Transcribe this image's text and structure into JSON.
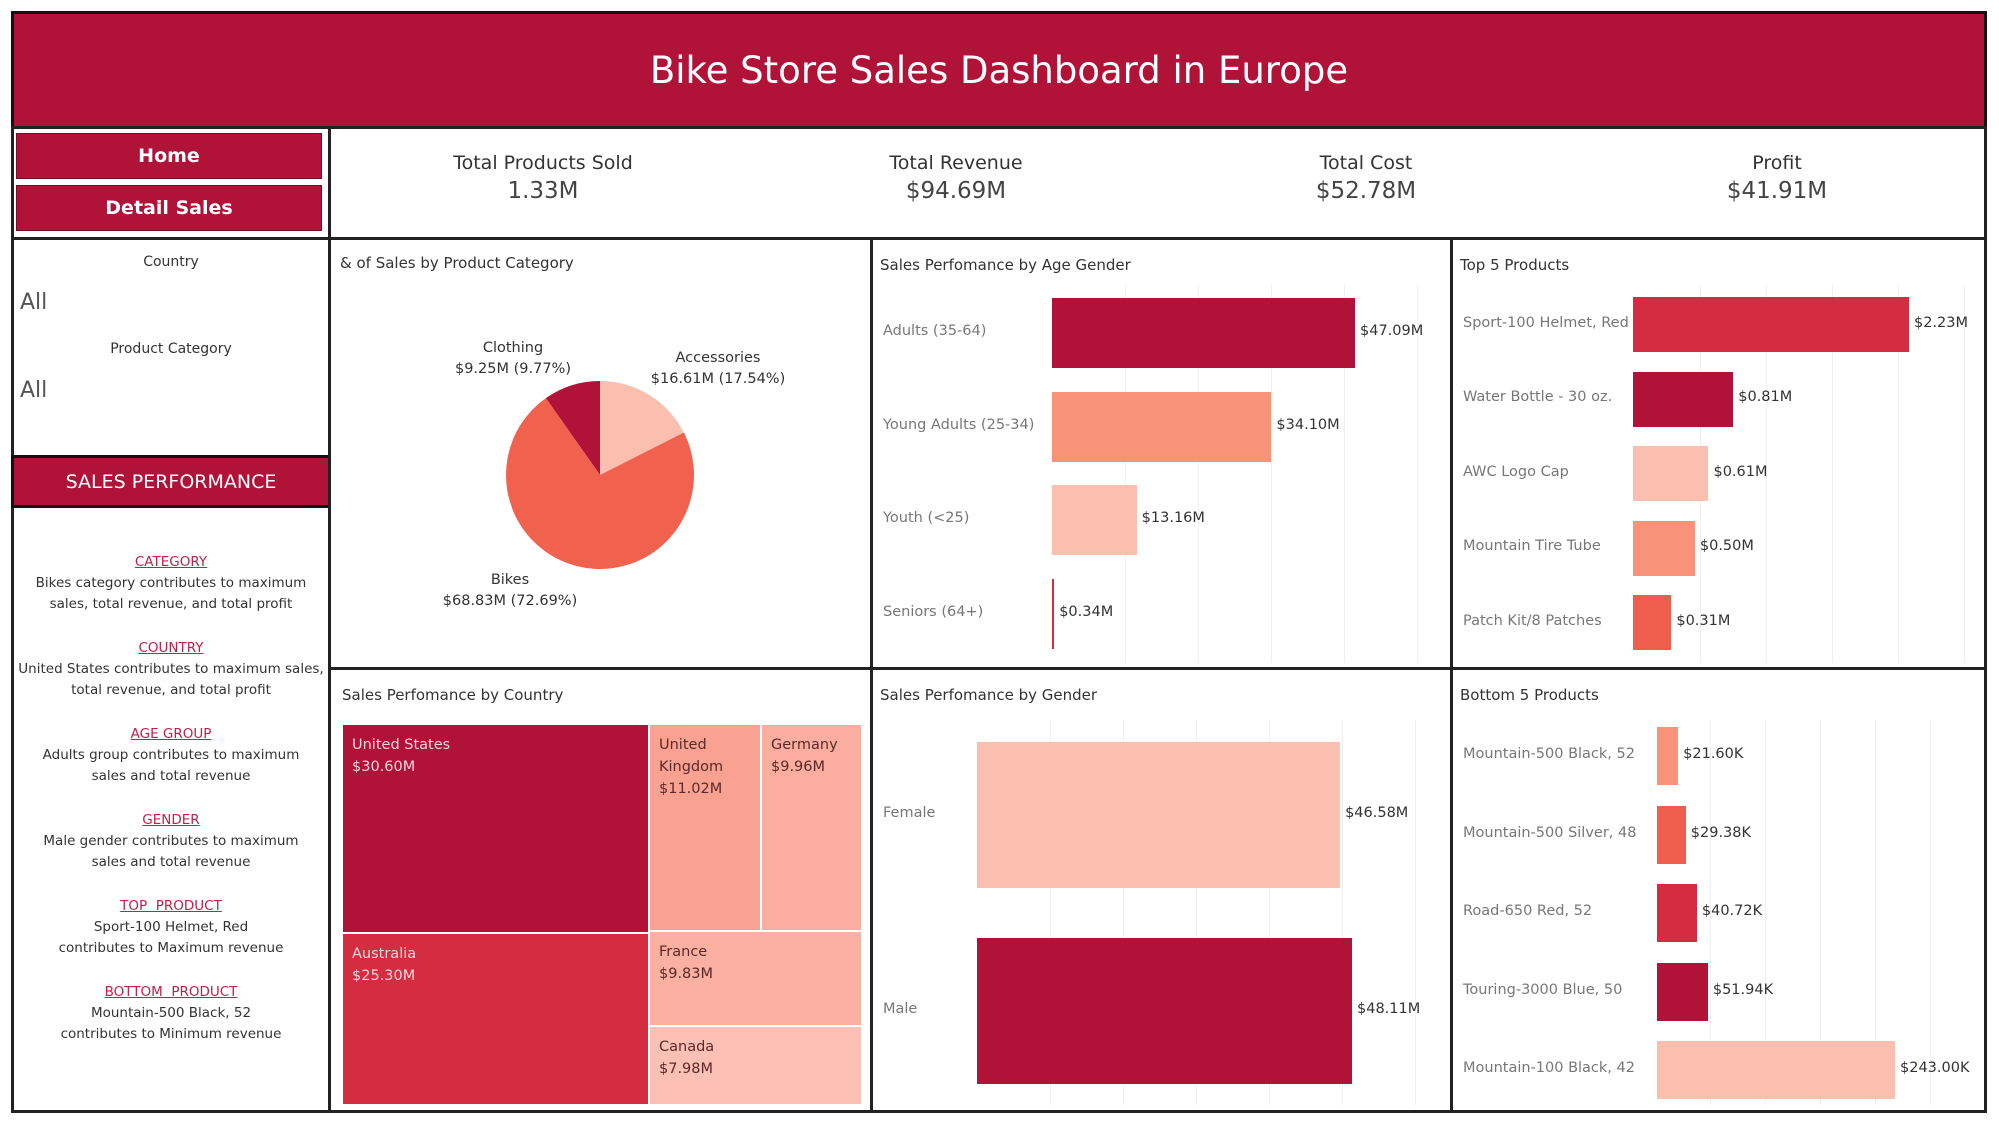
{
  "header": {
    "title": "Bike Store Sales Dashboard in Europe"
  },
  "nav": {
    "home_label": "Home",
    "detail_label": "Detail Sales"
  },
  "kpis": [
    {
      "label": "Total Products Sold",
      "value": "1.33M"
    },
    {
      "label": "Total Revenue",
      "value": "$94.69M"
    },
    {
      "label": "Total Cost",
      "value": "$52.78M"
    },
    {
      "label": "Profit",
      "value": "$41.91M"
    }
  ],
  "filters": {
    "country_label": "Country",
    "country_value": "All",
    "category_label": "Product Category",
    "category_value": "All"
  },
  "sales_performance": {
    "title": "SALES PERFORMANCE",
    "items": [
      {
        "heading": "CATEGORY",
        "text": "Bikes category contributes to maximum sales, total revenue, and total profit"
      },
      {
        "heading": "COUNTRY",
        "text": "United States contributes to maximum sales, total revenue, and total profit"
      },
      {
        "heading": "AGE GROUP",
        "text": "Adults group contributes to maximum sales and total revenue"
      },
      {
        "heading": "GENDER",
        "text": "Male gender contributes to maximum sales and total revenue"
      },
      {
        "heading": "TOP  PRODUCT",
        "text": "Sport-100 Helmet, Red contributes to Maximum revenue"
      },
      {
        "heading": "BOTTOM  PRODUCT",
        "text": "Mountain-500 Black, 52 contributes to Minimum revenue"
      }
    ]
  },
  "colors": {
    "dark": "#b01238",
    "red": "#d42d42",
    "coral": "#ef6250",
    "salmon": "#f8937a",
    "pink": "#fbbfb0",
    "header": "#b01238"
  },
  "chart_data": [
    {
      "type": "pie",
      "title": "& of Sales by Product Category",
      "slices": [
        {
          "name": "Clothing",
          "value": 9.25,
          "label": "$9.25M (9.77%)",
          "color": "#b01238"
        },
        {
          "name": "Accessories",
          "value": 16.61,
          "label": "$16.61M (17.54%)",
          "color": "#fbbfb0"
        },
        {
          "name": "Bikes",
          "value": 68.83,
          "label": "$68.83M (72.69%)",
          "color": "#f0614e"
        }
      ]
    },
    {
      "type": "bar",
      "title": "Sales Perfomance by Age Gender",
      "categories": [
        "Adults (35-64)",
        "Young Adults (25-34)",
        "Youth (<25)",
        "Seniors (64+)"
      ],
      "values": [
        47.09,
        34.1,
        13.16,
        0.34
      ],
      "labels": [
        "$47.09M",
        "$34.10M",
        "$13.16M",
        "$0.34M"
      ],
      "colors": [
        "#b01238",
        "#f8937a",
        "#fbbfb0",
        "#d42d42"
      ]
    },
    {
      "type": "bar",
      "title": "Top 5 Products",
      "categories": [
        "Sport-100 Helmet, Red",
        "Water Bottle - 30 oz.",
        "AWC Logo Cap",
        "Mountain Tire Tube",
        "Patch Kit/8 Patches"
      ],
      "values": [
        2.23,
        0.81,
        0.61,
        0.5,
        0.31
      ],
      "labels": [
        "$2.23M",
        "$0.81M",
        "$0.61M",
        "$0.50M",
        "$0.31M"
      ],
      "colors": [
        "#d42d42",
        "#b01238",
        "#fbbfb0",
        "#f8937a",
        "#ef5e4c"
      ]
    },
    {
      "type": "heatmap",
      "title": "Sales Perfomance by Country",
      "items": [
        {
          "name": "United States",
          "value": 30.6,
          "label": "$30.60M",
          "color": "#b01238",
          "tone": "dark"
        },
        {
          "name": "Australia",
          "value": 25.3,
          "label": "$25.30M",
          "color": "#d42d42",
          "tone": "dark"
        },
        {
          "name": "United Kingdom",
          "value": 11.02,
          "label": "$11.02M",
          "color": "#f9a292",
          "tone": "light"
        },
        {
          "name": "Germany",
          "value": 9.96,
          "label": "$9.96M",
          "color": "#fbae9f",
          "tone": "light"
        },
        {
          "name": "France",
          "value": 9.83,
          "label": "$9.83M",
          "color": "#fbb0a1",
          "tone": "light"
        },
        {
          "name": "Canada",
          "value": 7.98,
          "label": "$7.98M",
          "color": "#fcc1b4",
          "tone": "light"
        }
      ]
    },
    {
      "type": "bar",
      "title": "Sales Perfomance by Gender",
      "categories": [
        "Female",
        "Male"
      ],
      "values": [
        46.58,
        48.11
      ],
      "labels": [
        "$46.58M",
        "$48.11M"
      ],
      "colors": [
        "#fbbfb0",
        "#b01238"
      ]
    },
    {
      "type": "bar",
      "title": "Bottom 5 Products",
      "categories": [
        "Mountain-500 Black, 52",
        "Mountain-500 Silver, 48",
        "Road-650 Red, 52",
        "Touring-3000 Blue, 50",
        "Mountain-100 Black, 42"
      ],
      "values": [
        21.6,
        29.38,
        40.72,
        51.94,
        243.0
      ],
      "labels": [
        "$21.60K",
        "$29.38K",
        "$40.72K",
        "$51.94K",
        "$243.00K"
      ],
      "colors": [
        "#f8937a",
        "#ef5e4c",
        "#d42d42",
        "#b01238",
        "#fbbfb0"
      ]
    }
  ]
}
